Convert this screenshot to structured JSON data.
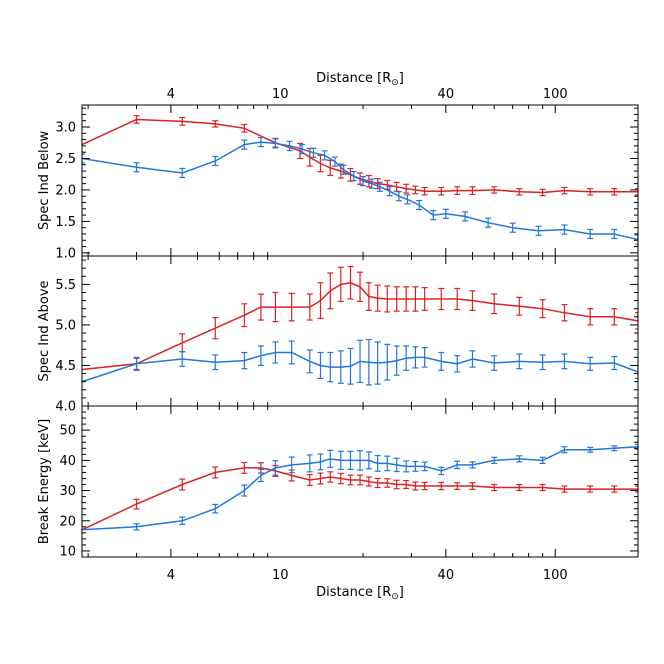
{
  "chart_data": {
    "type": "line",
    "x_axis": {
      "label": "Distance [R",
      "label_symbol": "⊙",
      "label_close": "]",
      "scale": "log",
      "range": [
        1.9,
        200
      ],
      "ticks": [
        4,
        10,
        40,
        100
      ],
      "tick_labels": [
        "4",
        "10",
        "40",
        "100"
      ]
    },
    "colors": {
      "red": "#dd2222",
      "blue": "#2277dd"
    },
    "panels": [
      {
        "ylabel": "Spec Ind Below",
        "ylim": [
          0.95,
          3.35
        ],
        "yticks": [
          1.0,
          1.5,
          2.0,
          2.5,
          3.0
        ],
        "ytick_labels": [
          "1.0",
          "1.5",
          "2.0",
          "2.5",
          "3.0"
        ],
        "series": [
          {
            "color": "red",
            "x": [
              1.9,
              3.0,
              4.4,
              5.8,
              7.4,
              9.6,
              11.8,
              12.8,
              14.0,
              15.2,
              16.6,
              18.0,
              19.5,
              21.0,
              22.6,
              24.5,
              26.5,
              28.7,
              31.0,
              33.5,
              38.5,
              44.0,
              50.0,
              60.0,
              74.0,
              90.0,
              108.0,
              134.0,
              164.0,
              200.0
            ],
            "y": [
              2.72,
              3.12,
              3.09,
              3.05,
              2.98,
              2.75,
              2.62,
              2.52,
              2.42,
              2.35,
              2.3,
              2.24,
              2.18,
              2.14,
              2.1,
              2.08,
              2.05,
              2.02,
              2.0,
              1.98,
              1.98,
              1.99,
              1.99,
              2.0,
              1.97,
              1.96,
              1.99,
              1.97,
              1.97,
              1.97
            ],
            "err": [
              0,
              0.06,
              0.06,
              0.05,
              0.06,
              0.07,
              0.12,
              0.14,
              0.13,
              0.12,
              0.11,
              0.1,
              0.09,
              0.09,
              0.08,
              0.07,
              0.07,
              0.07,
              0.06,
              0.06,
              0.06,
              0.06,
              0.06,
              0.05,
              0.05,
              0.05,
              0.05,
              0.05,
              0.05,
              0.05
            ]
          },
          {
            "color": "blue",
            "x": [
              1.9,
              3.0,
              4.4,
              5.8,
              7.4,
              8.5,
              9.6,
              10.8,
              12.0,
              13.2,
              14.5,
              15.8,
              17.0,
              18.5,
              20.0,
              21.5,
              23.0,
              25.0,
              27.0,
              29.0,
              32.0,
              36.0,
              40.0,
              47.0,
              57.0,
              70.0,
              87.0,
              108.0,
              134.0,
              164.0,
              200.0
            ],
            "y": [
              2.5,
              2.36,
              2.27,
              2.46,
              2.72,
              2.76,
              2.74,
              2.7,
              2.65,
              2.59,
              2.55,
              2.45,
              2.32,
              2.22,
              2.14,
              2.1,
              2.05,
              1.98,
              1.9,
              1.85,
              1.76,
              1.6,
              1.62,
              1.58,
              1.48,
              1.4,
              1.35,
              1.37,
              1.3,
              1.3,
              1.21
            ]
          }
        ]
      },
      {
        "ylabel": "Spec Ind Above",
        "ylim": [
          4.0,
          5.85
        ],
        "yticks": [
          4.0,
          4.5,
          5.0,
          5.5
        ],
        "ytick_labels": [
          "4.0",
          "4.5",
          "5.0",
          "5.5"
        ],
        "series": [
          {
            "color": "red",
            "x": [
              1.9,
              3.0,
              4.4,
              5.8,
              7.4,
              8.5,
              9.6,
              11.0,
              12.8,
              14.0,
              15.2,
              16.6,
              18.0,
              19.5,
              21.0,
              22.6,
              24.5,
              26.5,
              28.7,
              31.0,
              33.5,
              38.5,
              44.0,
              50.0,
              60.0,
              74.0,
              90.0,
              108.0,
              134.0,
              164.0,
              200.0
            ],
            "y": [
              4.45,
              4.52,
              4.78,
              4.96,
              5.12,
              5.22,
              5.22,
              5.22,
              5.22,
              5.3,
              5.42,
              5.5,
              5.52,
              5.47,
              5.35,
              5.33,
              5.32,
              5.32,
              5.32,
              5.32,
              5.32,
              5.32,
              5.32,
              5.3,
              5.26,
              5.23,
              5.2,
              5.15,
              5.1,
              5.1,
              5.05
            ],
            "err": [
              0,
              0.07,
              0.11,
              0.13,
              0.14,
              0.16,
              0.18,
              0.17,
              0.16,
              0.22,
              0.22,
              0.21,
              0.2,
              0.18,
              0.17,
              0.16,
              0.16,
              0.15,
              0.15,
              0.15,
              0.14,
              0.13,
              0.13,
              0.12,
              0.12,
              0.11,
              0.11,
              0.1,
              0.1,
              0.1,
              0.1
            ]
          },
          {
            "color": "blue",
            "x": [
              1.9,
              3.0,
              4.4,
              5.8,
              7.4,
              8.5,
              9.6,
              11.0,
              12.8,
              14.0,
              15.2,
              16.6,
              18.0,
              19.5,
              21.0,
              22.6,
              24.5,
              26.5,
              28.7,
              31.0,
              33.5,
              38.5,
              44.0,
              50.0,
              60.0,
              74.0,
              90.0,
              108.0,
              134.0,
              164.0,
              200.0
            ],
            "y": [
              4.3,
              4.52,
              4.58,
              4.54,
              4.56,
              4.62,
              4.66,
              4.66,
              4.55,
              4.5,
              4.48,
              4.48,
              4.49,
              4.55,
              4.54,
              4.53,
              4.54,
              4.56,
              4.59,
              4.6,
              4.6,
              4.55,
              4.52,
              4.58,
              4.53,
              4.55,
              4.54,
              4.55,
              4.52,
              4.53,
              4.42
            ],
            "err": [
              0,
              0.08,
              0.09,
              0.09,
              0.1,
              0.12,
              0.13,
              0.14,
              0.14,
              0.16,
              0.18,
              0.2,
              0.22,
              0.26,
              0.28,
              0.26,
              0.22,
              0.18,
              0.15,
              0.13,
              0.12,
              0.11,
              0.1,
              0.1,
              0.09,
              0.09,
              0.09,
              0.09,
              0.08,
              0.08,
              0.08
            ]
          }
        ]
      },
      {
        "ylabel": "Break Energy [keV]",
        "ylim": [
          8,
          58
        ],
        "yticks": [
          10,
          20,
          30,
          40,
          50
        ],
        "ytick_labels": [
          "10",
          "20",
          "30",
          "40",
          "50"
        ],
        "series": [
          {
            "color": "red",
            "x": [
              1.9,
              3.0,
              4.4,
              5.8,
              7.4,
              8.5,
              9.6,
              11.0,
              12.8,
              14.0,
              15.2,
              16.6,
              18.0,
              19.5,
              21.0,
              22.6,
              24.5,
              26.5,
              28.7,
              31.0,
              33.5,
              38.5,
              44.0,
              50.0,
              60.0,
              74.0,
              90.0,
              108.0,
              134.0,
              164.0,
              200.0
            ],
            "y": [
              17,
              25.5,
              32,
              36,
              37.5,
              37.5,
              36.5,
              35,
              33.5,
              34,
              34.5,
              34,
              33.5,
              33.5,
              33,
              32.5,
              32.5,
              32,
              32,
              31.5,
              31.5,
              31.5,
              31.5,
              31.5,
              31,
              31,
              31,
              30.5,
              30.5,
              30.5,
              30.5
            ],
            "err": [
              0,
              1.6,
              1.8,
              1.8,
              1.8,
              1.7,
              1.8,
              1.8,
              1.8,
              1.8,
              1.7,
              1.7,
              1.6,
              1.6,
              1.5,
              1.5,
              1.4,
              1.4,
              1.3,
              1.3,
              1.2,
              1.2,
              1.1,
              1.1,
              1.0,
              1.0,
              1.0,
              1.0,
              1.0,
              1.0,
              1.0
            ]
          },
          {
            "color": "blue",
            "x": [
              1.9,
              3.0,
              4.4,
              5.8,
              7.4,
              8.5,
              9.6,
              11.0,
              12.8,
              14.0,
              15.2,
              16.6,
              18.0,
              19.5,
              21.0,
              22.6,
              24.5,
              26.5,
              28.7,
              31.0,
              33.5,
              38.5,
              44.0,
              50.0,
              60.0,
              74.0,
              90.0,
              108.0,
              134.0,
              164.0,
              200.0
            ],
            "y": [
              17,
              18,
              20,
              24,
              30,
              35,
              37.5,
              38.5,
              39,
              39.5,
              40.5,
              40,
              40,
              40,
              40,
              39,
              39,
              38.5,
              38,
              38,
              38,
              36.5,
              38.5,
              38.5,
              40,
              40.5,
              40,
              43.5,
              43.5,
              44,
              44.5
            ],
            "err": [
              0,
              1.0,
              1.2,
              1.4,
              1.8,
              2.0,
              2.4,
              2.6,
              2.8,
              2.6,
              2.8,
              3.0,
              3.0,
              3.2,
              2.8,
              2.6,
              2.4,
              2.2,
              1.8,
              1.6,
              1.4,
              1.2,
              1.2,
              1.0,
              1.0,
              1.0,
              1.0,
              1.0,
              0.8,
              0.8,
              0.8
            ]
          }
        ]
      }
    ]
  }
}
